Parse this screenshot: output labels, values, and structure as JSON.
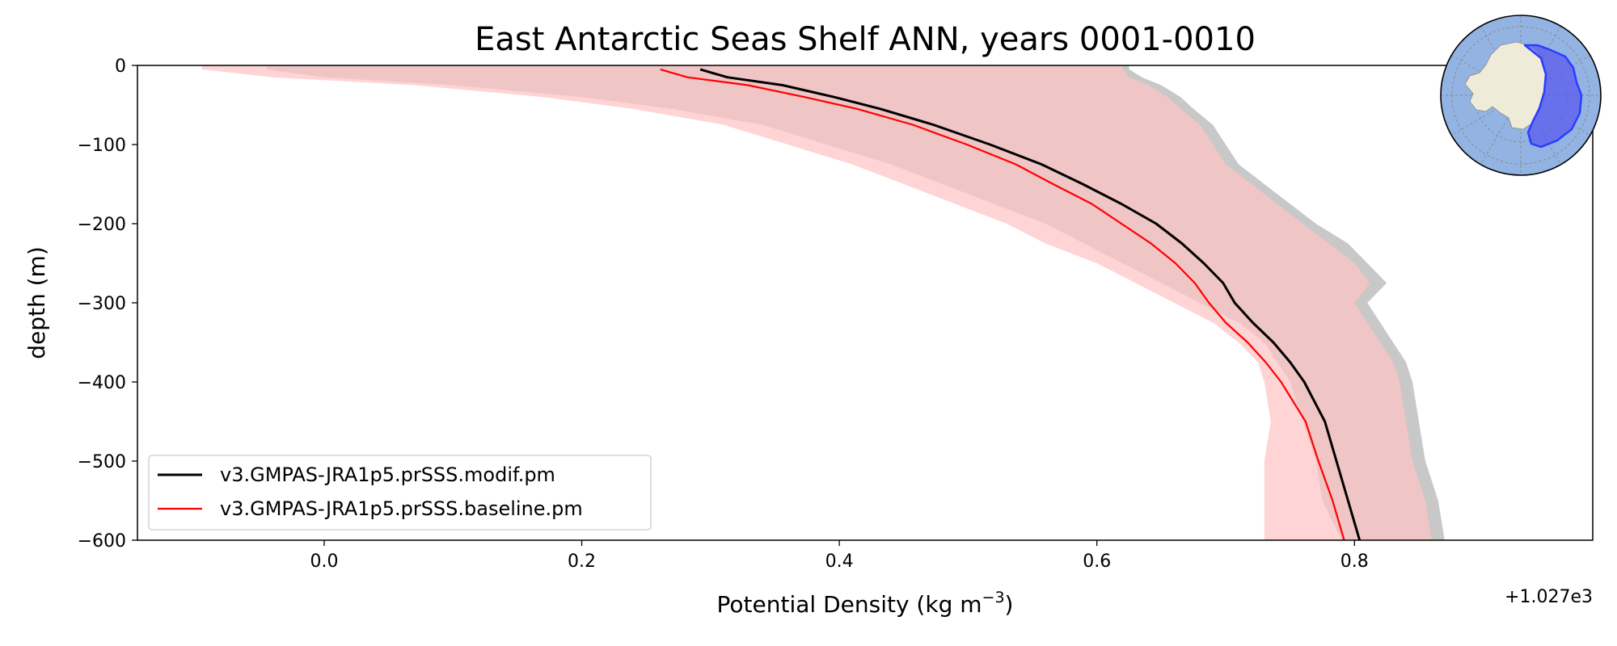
{
  "chart_data": {
    "type": "line",
    "title": "East Antarctic Seas Shelf ANN, years 0001-0010",
    "xlabel": "Potential Density (kg m",
    "xlabel_sup": "−3",
    "xlabel_close": ")",
    "ylabel": "depth (m)",
    "x_offset_label": "+1.027e3",
    "xlim": [
      -0.145,
      0.985
    ],
    "ylim": [
      -600,
      0
    ],
    "xticks": [
      0.0,
      0.2,
      0.4,
      0.6,
      0.8
    ],
    "xtick_labels": [
      "0.0",
      "0.2",
      "0.4",
      "0.6",
      "0.8"
    ],
    "yticks": [
      0,
      -100,
      -200,
      -300,
      -400,
      -500,
      -600
    ],
    "ytick_labels": [
      "0",
      "−100",
      "−200",
      "−300",
      "−400",
      "−500",
      "−600"
    ],
    "legend_position": "lower-left",
    "inset": "south-polar-map-east-antarctic-region",
    "series": [
      {
        "name": "v3.GMPAS-JRA1p5.prSSS.modif.pm",
        "color": "#000000",
        "band_color": "#c8c8c8",
        "depth": [
          -5,
          -15,
          -25,
          -40,
          -55,
          -75,
          -100,
          -125,
          -150,
          -175,
          -200,
          -225,
          -250,
          -275,
          -300,
          -325,
          -350,
          -375,
          -400,
          -450,
          -500,
          -550,
          -600
        ],
        "values": [
          0.292,
          0.313,
          0.356,
          0.396,
          0.432,
          0.473,
          0.517,
          0.557,
          0.589,
          0.619,
          0.646,
          0.666,
          0.683,
          0.698,
          0.707,
          0.721,
          0.737,
          0.75,
          0.761,
          0.777,
          0.786,
          0.795,
          0.804
        ],
        "band_low": [
          -0.045,
          0.0,
          0.1,
          0.2,
          0.27,
          0.34,
          0.39,
          0.44,
          0.48,
          0.52,
          0.56,
          0.59,
          0.62,
          0.65,
          0.68,
          0.71,
          0.73,
          0.74,
          0.75,
          0.76,
          0.77,
          0.775,
          0.79
        ],
        "band_high": [
          0.625,
          0.635,
          0.65,
          0.665,
          0.675,
          0.69,
          0.7,
          0.71,
          0.73,
          0.75,
          0.77,
          0.795,
          0.81,
          0.825,
          0.81,
          0.82,
          0.83,
          0.84,
          0.845,
          0.85,
          0.855,
          0.865,
          0.87
        ]
      },
      {
        "name": "v3.GMPAS-JRA1p5.prSSS.baseline.pm",
        "color": "#ff0000",
        "band_color": "#ffc4c4",
        "depth": [
          -5,
          -15,
          -25,
          -40,
          -55,
          -75,
          -100,
          -125,
          -150,
          -175,
          -200,
          -225,
          -250,
          -275,
          -300,
          -325,
          -350,
          -375,
          -400,
          -450,
          -500,
          -550,
          -600
        ],
        "values": [
          0.261,
          0.282,
          0.329,
          0.373,
          0.414,
          0.457,
          0.499,
          0.537,
          0.566,
          0.596,
          0.619,
          0.642,
          0.661,
          0.676,
          0.687,
          0.7,
          0.717,
          0.731,
          0.743,
          0.762,
          0.772,
          0.783,
          0.792
        ],
        "band_low": [
          -0.095,
          -0.04,
          0.07,
          0.17,
          0.24,
          0.31,
          0.36,
          0.41,
          0.45,
          0.49,
          0.53,
          0.56,
          0.6,
          0.63,
          0.66,
          0.69,
          0.71,
          0.725,
          0.73,
          0.735,
          0.73,
          0.73,
          0.73
        ],
        "band_high": [
          0.62,
          0.625,
          0.64,
          0.655,
          0.665,
          0.68,
          0.69,
          0.7,
          0.72,
          0.74,
          0.76,
          0.78,
          0.8,
          0.812,
          0.8,
          0.81,
          0.82,
          0.83,
          0.835,
          0.84,
          0.845,
          0.855,
          0.86
        ]
      }
    ]
  }
}
